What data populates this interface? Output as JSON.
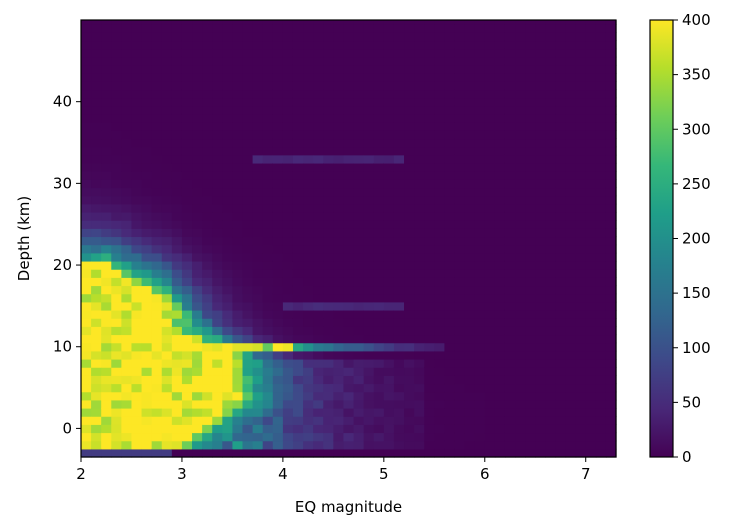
{
  "chart_data": {
    "type": "heatmap",
    "title": "",
    "xlabel": "EQ magnitude",
    "ylabel": "Depth (km)",
    "xlim": [
      2.0,
      7.3
    ],
    "ylim": [
      -3.5,
      50.0
    ],
    "x_ticks": [
      2,
      3,
      4,
      5,
      6,
      7
    ],
    "y_ticks": [
      0,
      10,
      20,
      30,
      40
    ],
    "colormap": "viridis",
    "color_range": [
      0,
      400
    ],
    "colorbar_ticks": [
      0,
      50,
      100,
      150,
      200,
      250,
      300,
      350,
      400
    ],
    "colorbar_colors": [
      "#440154",
      "#482878",
      "#3e4989",
      "#31688e",
      "#26828e",
      "#1f9e89",
      "#35b779",
      "#6ece58",
      "#b5de2b",
      "#fde725"
    ],
    "grid": false,
    "x_bin_width": 0.1,
    "y_bin_width": 1.0,
    "density_summary": {
      "saturated_core": {
        "magnitude": [
          2.0,
          2.9
        ],
        "depth_km": [
          -2.5,
          20.0
        ],
        "value": 400
      },
      "band_10km": {
        "depth_km": 10.0,
        "peak_magnitude_range": [
          3.3,
          4.1
        ],
        "extends_to_magnitude": 5.6
      },
      "band_33km": {
        "depth_km": 33.0,
        "magnitude_range": [
          3.7,
          5.2
        ],
        "value": 40
      },
      "band_15km": {
        "depth_km": 15.0,
        "magnitude_range": [
          4.0,
          5.2
        ],
        "value": 45
      },
      "shallow_tail": {
        "magnitude_max": 5.4,
        "depth_km": [
          -2.5,
          8.0
        ]
      },
      "background": 0
    }
  }
}
